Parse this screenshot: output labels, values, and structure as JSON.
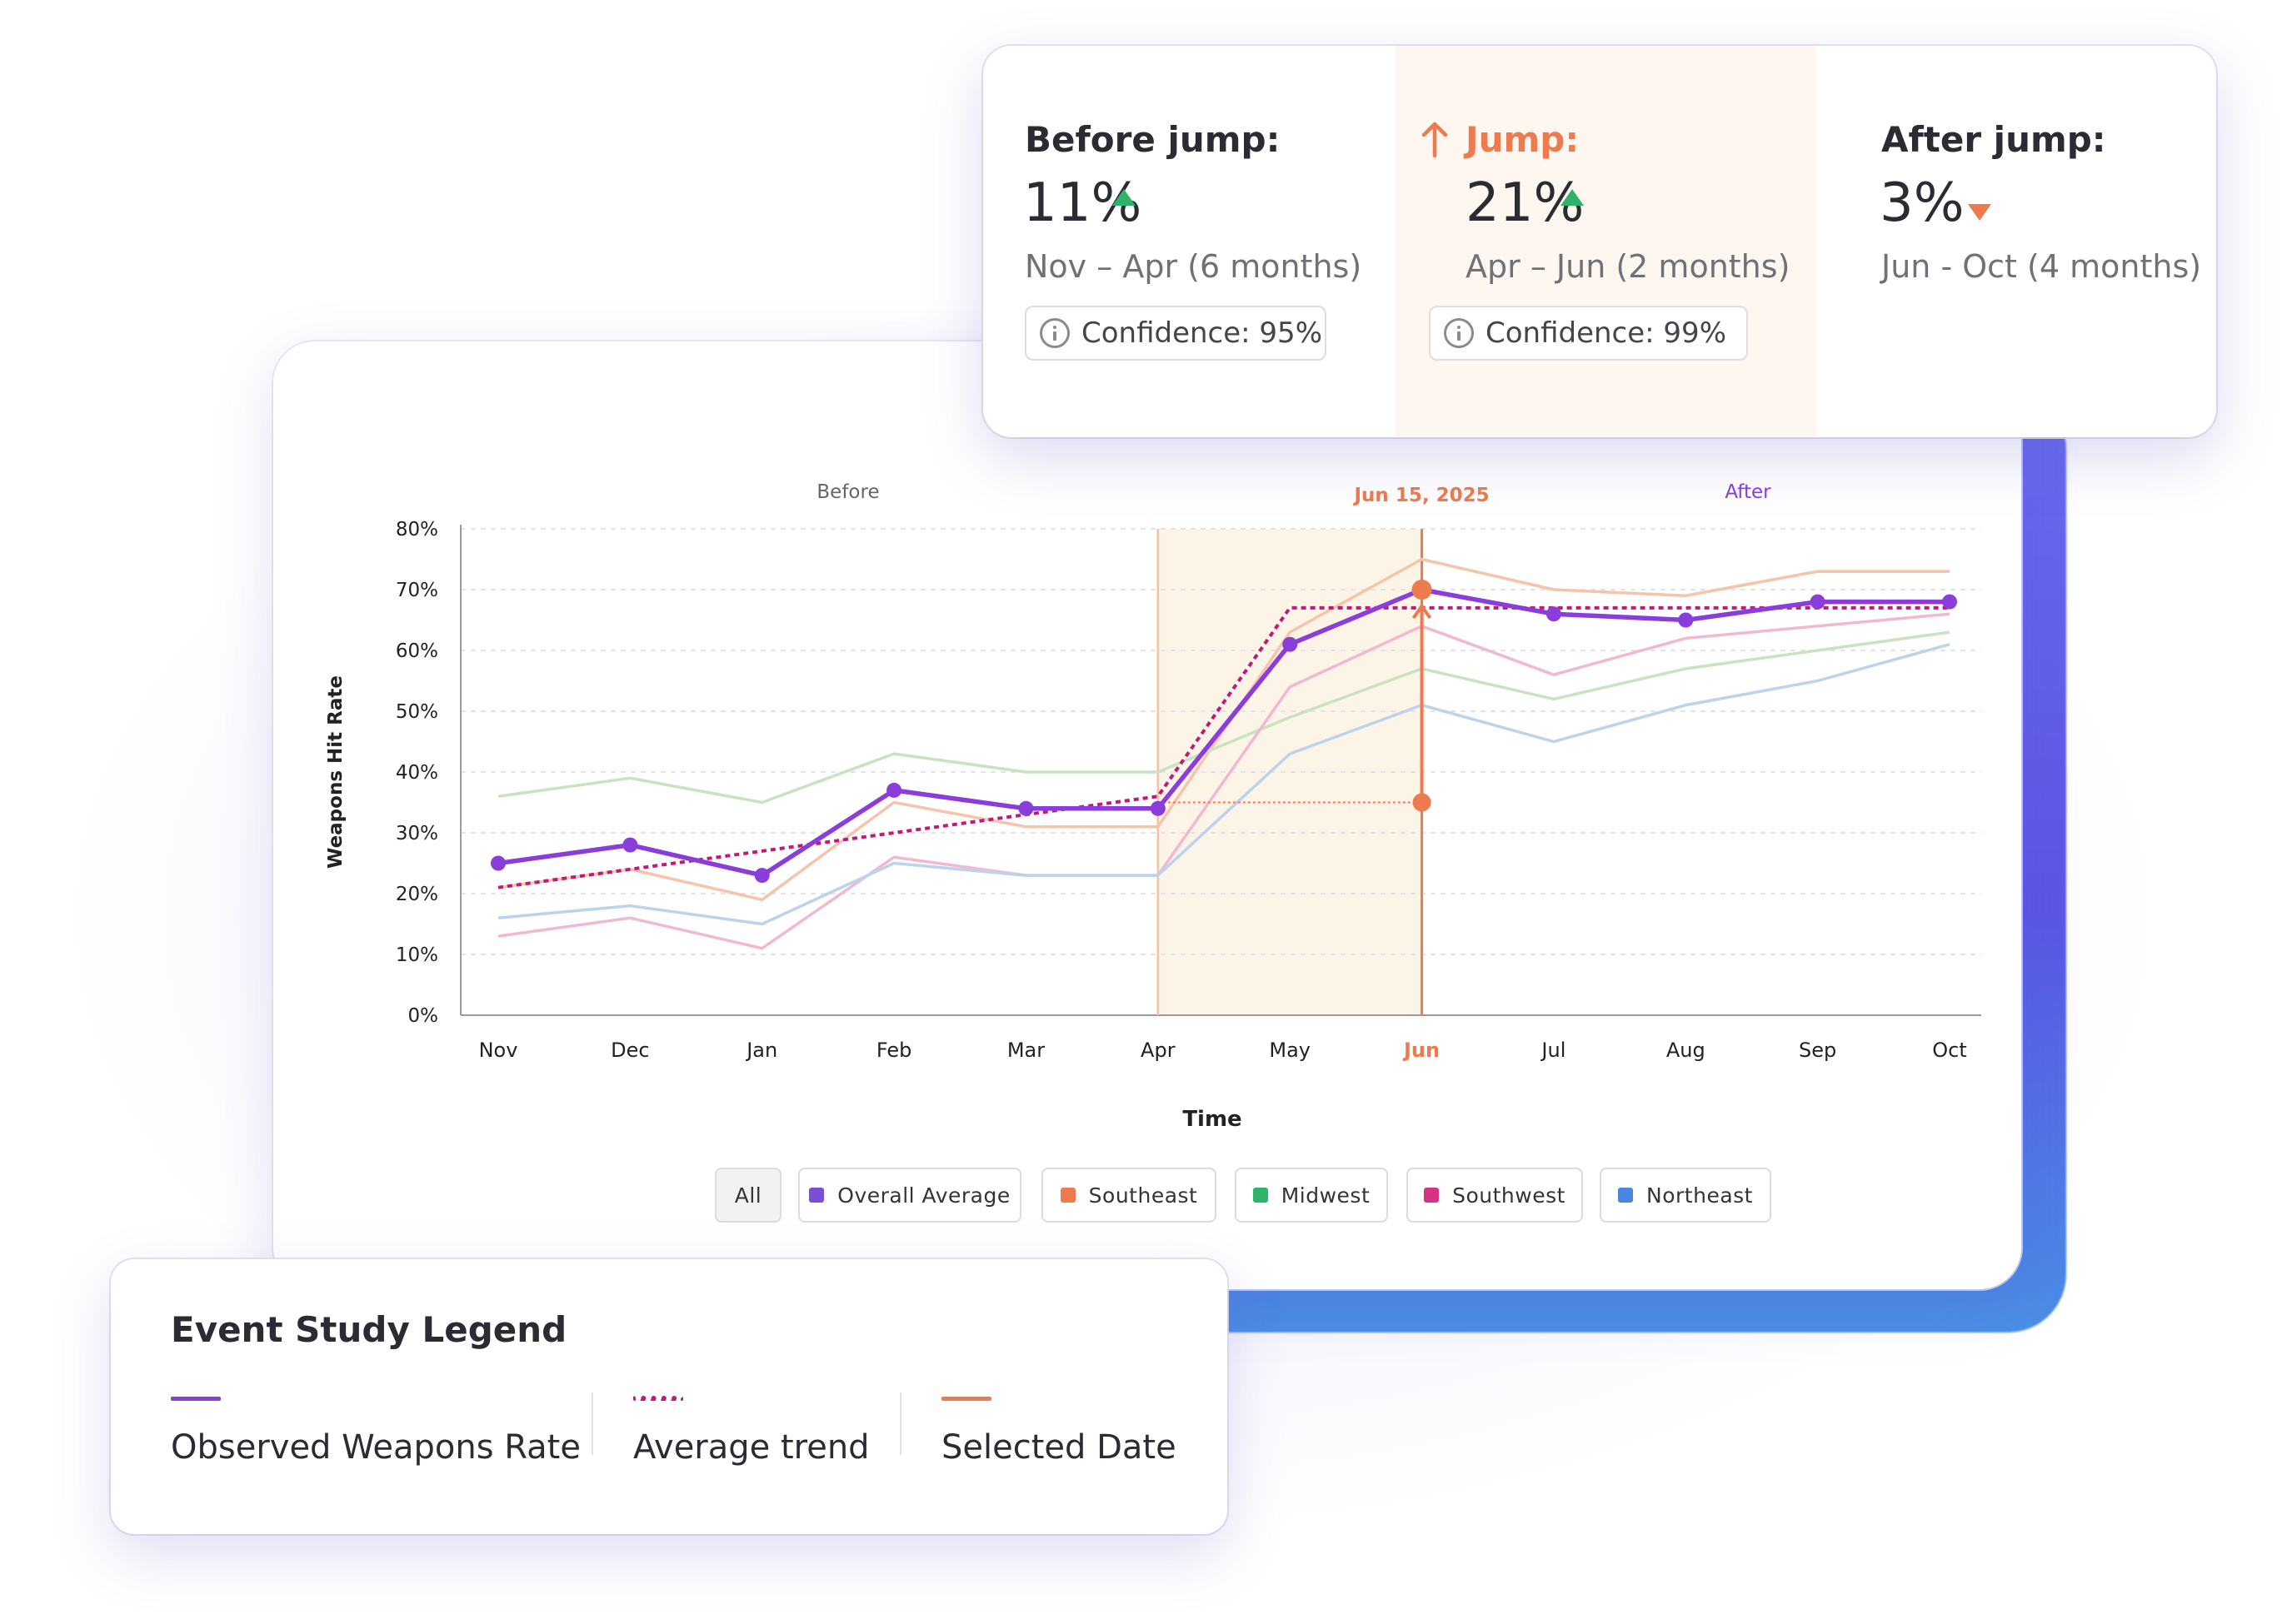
{
  "stats": {
    "before": {
      "title": "Before jump:",
      "value": "11%",
      "trend": "up",
      "range": "Nov – Apr (6 months)",
      "confidence": "Confidence: 95%"
    },
    "jump": {
      "title": "Jump:",
      "value": "21%",
      "trend": "up",
      "range": "Apr – Jun (2 months)",
      "confidence": "Confidence: 99%"
    },
    "after": {
      "title": "After jump:",
      "value": "3%",
      "trend": "down",
      "range": "Jun - Oct (4 months)"
    }
  },
  "filters": [
    {
      "label": "All",
      "color": ""
    },
    {
      "label": "Overall Average",
      "color": "#7b4ddb"
    },
    {
      "label": "Southeast",
      "color": "#ee7a4e"
    },
    {
      "label": "Midwest",
      "color": "#2fb36a"
    },
    {
      "label": "Southwest",
      "color": "#d63384"
    },
    {
      "label": "Northeast",
      "color": "#4a86e0"
    }
  ],
  "legend": {
    "title": "Event Study Legend",
    "items": [
      {
        "label": "Observed Weapons Rate",
        "color": "#8a3ddb",
        "style": "solid"
      },
      {
        "label": "Average trend",
        "color": "#c2187a",
        "style": "dotted"
      },
      {
        "label": "Selected Date",
        "color": "#ee7a4e",
        "style": "solid"
      }
    ]
  },
  "chart_data": {
    "type": "line",
    "categories": [
      "Nov",
      "Dec",
      "Jan",
      "Feb",
      "Mar",
      "Apr",
      "May",
      "Jun",
      "Jul",
      "Aug",
      "Sep",
      "Oct"
    ],
    "xlabel": "Time",
    "ylabel": "Weapons Hit Rate",
    "ylim": [
      0,
      80
    ],
    "yticks": [
      "0%",
      "10%",
      "20%",
      "30%",
      "40%",
      "50%",
      "60%",
      "70%",
      "80%"
    ],
    "grid": true,
    "region_labels": {
      "before": "Before",
      "selected_date": "Jun 15, 2025",
      "after": "After"
    },
    "highlight_month": "Jun",
    "highlight_range": [
      "Apr",
      "Jun"
    ],
    "series": [
      {
        "name": "Overall Average",
        "color": "#8a3ddb",
        "values": [
          25,
          28,
          23,
          37,
          34,
          34,
          61,
          70,
          66,
          65,
          68,
          68
        ]
      },
      {
        "name": "Southeast",
        "color": "#f5c4aa",
        "values": [
          21,
          24,
          19,
          35,
          31,
          31,
          63,
          75,
          70,
          69,
          73,
          73
        ]
      },
      {
        "name": "Midwest",
        "color": "#c9e2c0",
        "values": [
          36,
          39,
          35,
          43,
          40,
          40,
          49,
          57,
          52,
          57,
          60,
          63
        ]
      },
      {
        "name": "Southwest",
        "color": "#f2b8d2",
        "values": [
          13,
          16,
          11,
          26,
          23,
          23,
          54,
          64,
          56,
          62,
          64,
          66
        ]
      },
      {
        "name": "Northeast",
        "color": "#bcd3ee",
        "values": [
          16,
          18,
          15,
          25,
          23,
          23,
          43,
          51,
          45,
          51,
          55,
          61
        ]
      }
    ],
    "average_trend": {
      "name": "Average trend",
      "color": "#c2187a",
      "values": [
        21,
        24,
        27,
        30,
        33,
        36,
        67,
        67,
        67,
        67,
        67,
        67
      ]
    },
    "jump_marker": {
      "from": 35,
      "to": 70,
      "month": "Jun"
    }
  }
}
